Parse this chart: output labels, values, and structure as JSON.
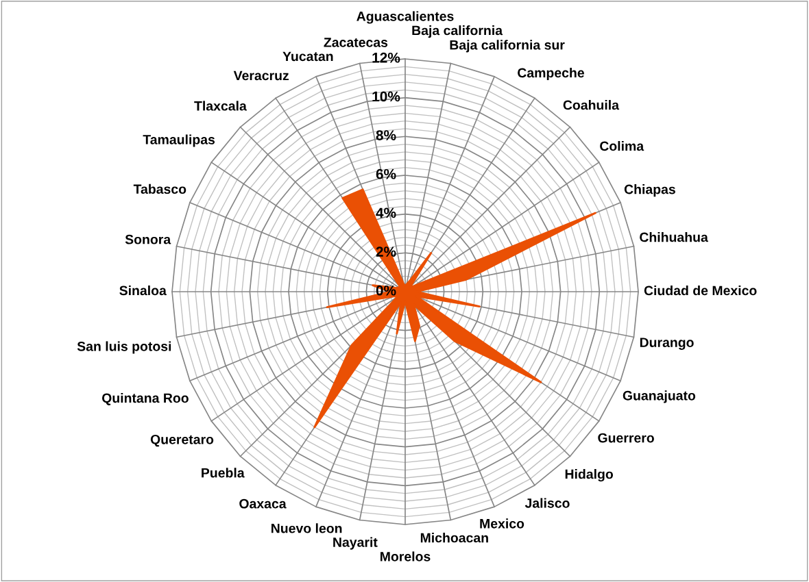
{
  "chart_data": {
    "type": "radar",
    "categories": [
      "Aguascalientes",
      "Baja california",
      "Baja california sur",
      "Campeche",
      "Coahuila",
      "Colima",
      "Chiapas",
      "Chihuahua",
      "Ciudad de Mexico",
      "Durango",
      "Guanajuato",
      "Guerrero",
      "Hidalgo",
      "Jalisco",
      "Mexico",
      "Michoacan",
      "Morelos",
      "Nayarit",
      "Nuevo leon",
      "Oaxaca",
      "Puebla",
      "Queretaro",
      "Quintana Roo",
      "San luis potosi",
      "Sinaloa",
      "Sonora",
      "Tabasco",
      "Tamaulipas",
      "Tlaxcala",
      "Veracruz",
      "Yucatan",
      "Zacatecas"
    ],
    "series": [
      {
        "color": "#ea5004",
        "values": [
          0.3,
          0.4,
          0.6,
          2.4,
          0.4,
          0.5,
          10.6,
          3.2,
          0.6,
          3.9,
          0.6,
          8.4,
          3.6,
          0.8,
          1.9,
          2.6,
          0.5,
          2.2,
          0.6,
          8.4,
          3.9,
          0.5,
          0.6,
          4.1,
          0.8,
          1.7,
          0.5,
          0.4,
          0.4,
          5.8,
          5.7,
          0.4
        ]
      }
    ],
    "ylim": [
      0,
      12
    ],
    "yticks": [
      {
        "value": 0,
        "label": "0%"
      },
      {
        "value": 2,
        "label": "2%"
      },
      {
        "value": 4,
        "label": "4%"
      },
      {
        "value": 6,
        "label": "6%"
      },
      {
        "value": 8,
        "label": "8%"
      },
      {
        "value": 10,
        "label": "10%"
      },
      {
        "value": 12,
        "label": "12%"
      }
    ],
    "grid": true
  }
}
